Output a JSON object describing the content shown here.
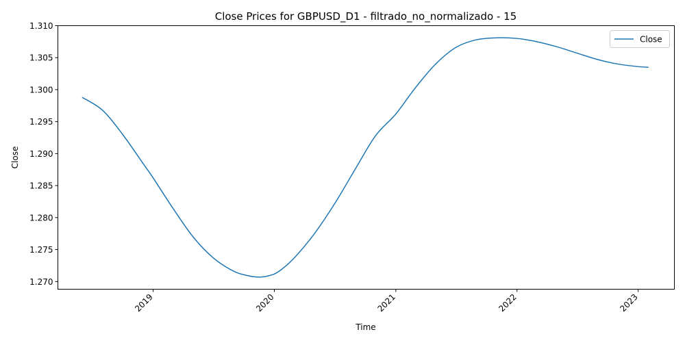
{
  "chart_data": {
    "type": "line",
    "title": "Close Prices for GBPUSD_D1 - filtrado_no_normalizado - 15",
    "xlabel": "Time",
    "ylabel": "Close",
    "x_ticks": [
      "2019",
      "2020",
      "2021",
      "2022",
      "2023"
    ],
    "y_ticks": [
      "1.270",
      "1.275",
      "1.280",
      "1.285",
      "1.290",
      "1.295",
      "1.300",
      "1.305",
      "1.310"
    ],
    "xlim": [
      "2018-03-20",
      "2023-04-20"
    ],
    "ylim": [
      1.2688,
      1.31
    ],
    "legend": {
      "position": "top-right",
      "entries": [
        "Close"
      ]
    },
    "grid": false,
    "series": [
      {
        "name": "Close",
        "color": "#1f77b4",
        "x": [
          "2018-06-01",
          "2018-08-01",
          "2018-10-01",
          "2018-12-01",
          "2019-01-01",
          "2019-03-01",
          "2019-05-01",
          "2019-07-01",
          "2019-09-01",
          "2019-10-15",
          "2019-11-15",
          "2019-12-15",
          "2020-01-15",
          "2020-03-01",
          "2020-05-01",
          "2020-07-01",
          "2020-09-01",
          "2020-11-01",
          "2021-01-01",
          "2021-03-01",
          "2021-05-01",
          "2021-07-01",
          "2021-09-01",
          "2021-11-01",
          "2022-01-01",
          "2022-03-01",
          "2022-05-01",
          "2022-07-01",
          "2022-09-01",
          "2022-11-01",
          "2023-01-01",
          "2023-02-01"
        ],
        "values": [
          1.2988,
          1.2968,
          1.293,
          1.2885,
          1.2862,
          1.2815,
          1.277,
          1.2737,
          1.2716,
          1.2709,
          1.2707,
          1.2709,
          1.2716,
          1.2737,
          1.2775,
          1.2822,
          1.2876,
          1.2928,
          1.2962,
          1.3003,
          1.304,
          1.3066,
          1.3078,
          1.3081,
          1.308,
          1.3075,
          1.3067,
          1.3057,
          1.3047,
          1.304,
          1.3036,
          1.3035
        ]
      }
    ]
  }
}
